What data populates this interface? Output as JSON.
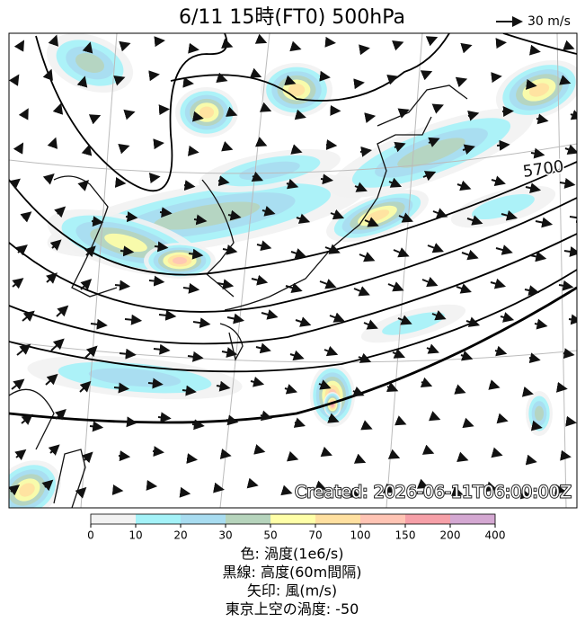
{
  "header": {
    "title": "6/11  15時(FT0)    500hPa",
    "wind_scale": "30 m/s"
  },
  "map": {
    "contour_label": "5700",
    "created": "Created: 2026-06-11T06:00:00Z"
  },
  "colorbar": {
    "ticks": [
      0,
      10,
      20,
      30,
      50,
      70,
      100,
      150,
      200,
      400
    ],
    "colors": [
      "#f2f2f2",
      "#a4f2f8",
      "#a8dcf0",
      "#b6d4bc",
      "#ffffa8",
      "#ffe0a0",
      "#ffc4b4",
      "#f6a0a8",
      "#d4a8d2"
    ]
  },
  "caption": [
    "色: 渦度(1e6/s)",
    "黒線: 高度(60m間隔)",
    "矢印: 風(m/s)",
    "東京上空の渦度: -50"
  ]
}
